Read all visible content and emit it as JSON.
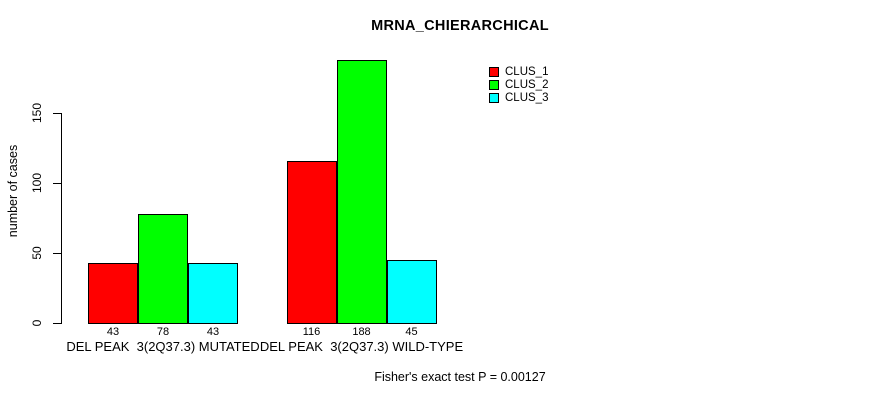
{
  "chart_data": {
    "type": "bar",
    "title": "MRNA_CHIERARCHICAL",
    "xlabel": "",
    "ylabel": "number of cases",
    "footnote": "Fisher's exact test P = 0.00127",
    "categories": [
      "DEL PEAK  3(2Q37.3) MUTATED",
      "DEL PEAK  3(2Q37.3) WILD-TYPE"
    ],
    "series": [
      {
        "name": "CLUS_1",
        "color": "#ff0000",
        "values": [
          43,
          116
        ]
      },
      {
        "name": "CLUS_2",
        "color": "#00ff00",
        "values": [
          78,
          188
        ]
      },
      {
        "name": "CLUS_3",
        "color": "#00ffff",
        "values": [
          43,
          45
        ]
      }
    ],
    "show_value_labels": true,
    "y_ticks": [
      0,
      50,
      100,
      150
    ],
    "ylim": [
      0,
      195
    ],
    "grid": false,
    "legend_position": "top-right",
    "bar_border_color": "#000000",
    "axis_color": "#000000",
    "background_color": "#ffffff",
    "text_color": "#000000"
  }
}
